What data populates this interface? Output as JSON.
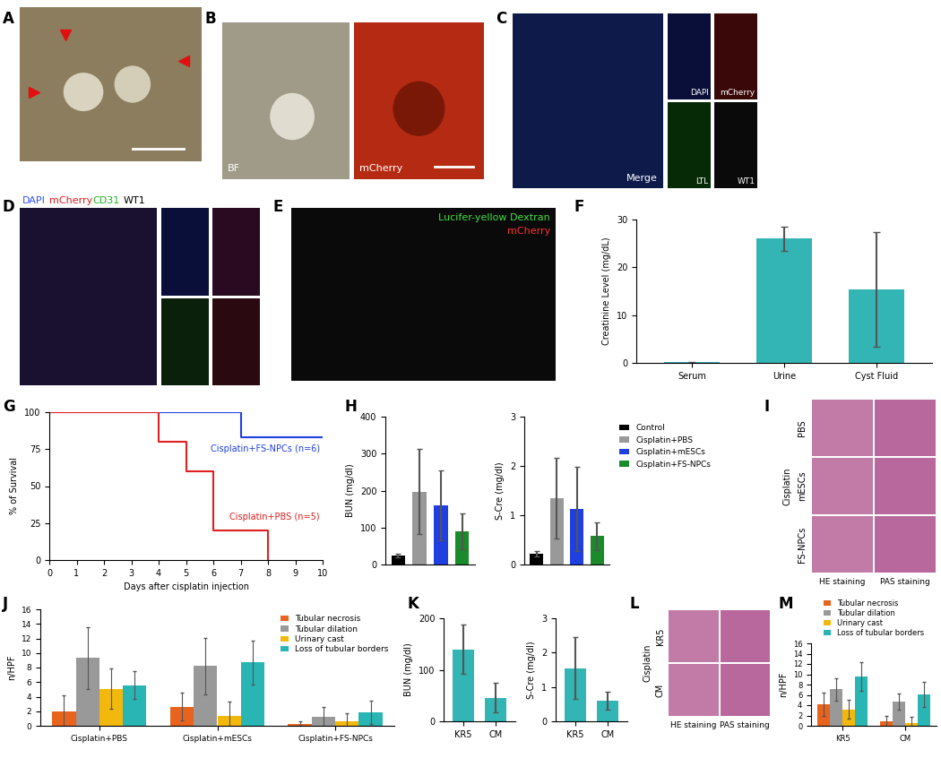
{
  "images": [
    {
      "panel": "A"
    },
    {
      "panel": "B",
      "labels": [
        "BF",
        "mCherry"
      ]
    },
    {
      "panel": "C",
      "labels": [
        "Merge",
        "DAPI",
        "mCherry",
        "LTL",
        "WT1"
      ]
    },
    {
      "panel": "D",
      "labels": [
        "DAPI",
        "mCherry",
        "CD31",
        "WT1"
      ]
    },
    {
      "panel": "E",
      "labels": [
        "Lucifer-yellow Dextran",
        "mCherry"
      ]
    },
    {
      "panel": "I",
      "group": "Cisplatin",
      "rows": [
        "PBS",
        "mESCs",
        "FS-NPCs"
      ],
      "columns": [
        "HE staining",
        "PAS staining"
      ]
    },
    {
      "panel": "L",
      "group": "Cisplatin",
      "rows": [
        "KR5",
        "CM"
      ],
      "columns": [
        "HE staining",
        "PAS staining"
      ]
    }
  ],
  "chart_data": [
    {
      "panel": "F",
      "type": "bar",
      "categories": [
        "Serum",
        "Urine",
        "Cyst Fluid"
      ],
      "values": [
        0.15,
        26,
        15.3
      ],
      "errors": [
        0.1,
        2.5,
        12
      ],
      "color": "#33b5b5",
      "ylabel": "Creatinine Level (mg/dL)",
      "ylim": [
        0,
        30
      ],
      "yticks": [
        0,
        10,
        20,
        30
      ]
    },
    {
      "panel": "G",
      "type": "step",
      "xlabel": "Days after cisplatin injection",
      "ylabel": "% of Survival",
      "xlim": [
        0,
        10
      ],
      "xticks": [
        0,
        1,
        2,
        3,
        4,
        5,
        6,
        7,
        8,
        9,
        10
      ],
      "ylim": [
        0,
        100
      ],
      "yticks": [
        0,
        25,
        50,
        75,
        100
      ],
      "series": [
        {
          "name": "Cisplatin+FS-NPCs (n=6)",
          "color": "#2040e0",
          "x": [
            0,
            7,
            10
          ],
          "values": [
            100,
            83.3,
            83.3
          ]
        },
        {
          "name": "Cisplatin+PBS (n=5)",
          "color": "#e02020",
          "x": [
            0,
            4,
            5,
            6,
            8
          ],
          "values": [
            100,
            80,
            60,
            20,
            0
          ]
        }
      ]
    },
    {
      "panel": "H",
      "type": "bar",
      "categories": [
        "Control",
        "Cisplatin+PBS",
        "Cisplatin+mESCs",
        "Cisplatin+FS-NPCs"
      ],
      "colors": [
        "#000000",
        "#999999",
        "#1f3fe0",
        "#1a8a2a"
      ],
      "legend": "upper left",
      "tick_labels": "y",
      "subplots": [
        {
          "ylabel": "BUN (mg/dl)",
          "values": [
            25,
            197,
            160,
            90
          ],
          "errors": [
            5,
            115,
            95,
            48
          ],
          "ylim": [
            0,
            400
          ],
          "yticks": [
            0,
            100,
            200,
            300,
            400
          ]
        },
        {
          "ylabel": "S-Cre (mg/dl)",
          "values": [
            0.22,
            1.35,
            1.13,
            0.58
          ],
          "errors": [
            0.05,
            0.82,
            0.85,
            0.28
          ],
          "ylim": [
            0,
            3
          ],
          "yticks": [
            0,
            1,
            2,
            3
          ]
        }
      ]
    },
    {
      "panel": "J",
      "type": "bar",
      "categories": [
        "Cisplatin+PBS",
        "Cisplatin+mESCs",
        "Cisplatin+FS-NPCs"
      ],
      "ylabel": "n/HPF",
      "ylim": [
        0,
        16
      ],
      "yticks": [
        0,
        2,
        4,
        6,
        8,
        10,
        12,
        14,
        16
      ],
      "legend": "upper right",
      "series": [
        {
          "name": "Tubular necrosis",
          "color": "#e8641e",
          "values": [
            2.0,
            2.6,
            0.3
          ],
          "errors": [
            2.2,
            1.9,
            0.3
          ]
        },
        {
          "name": "Tubular dilation",
          "color": "#999999",
          "values": [
            9.3,
            8.2,
            1.2
          ],
          "errors": [
            4.2,
            3.9,
            1.4
          ]
        },
        {
          "name": "Urinary cast",
          "color": "#f2b80c",
          "values": [
            5.1,
            1.4,
            0.6
          ],
          "errors": [
            2.8,
            1.9,
            1.1
          ]
        },
        {
          "name": "Loss of tubular borders",
          "color": "#2ab5b5",
          "values": [
            5.6,
            8.7,
            1.8
          ],
          "errors": [
            1.9,
            3.0,
            1.6
          ]
        }
      ]
    },
    {
      "panel": "K",
      "type": "bar",
      "categories": [
        "KR5",
        "CM"
      ],
      "color": "#33b5b5",
      "subplots": [
        {
          "ylabel": "BUN (mg/dl)",
          "values": [
            140,
            46
          ],
          "errors": [
            47,
            28
          ],
          "ylim": [
            0,
            200
          ],
          "yticks": [
            0,
            100,
            200
          ]
        },
        {
          "ylabel": "S-Cre (mg/dl)",
          "values": [
            1.55,
            0.6
          ],
          "errors": [
            0.9,
            0.27
          ],
          "ylim": [
            0,
            3
          ],
          "yticks": [
            0,
            1,
            2,
            3
          ]
        }
      ]
    },
    {
      "panel": "M",
      "type": "bar",
      "categories": [
        "KR5",
        "CM"
      ],
      "ylabel": "n/HPF",
      "ylim": [
        0,
        16
      ],
      "yticks": [
        0,
        2,
        4,
        6,
        8,
        10,
        12,
        14,
        16
      ],
      "legend": "upper center",
      "series": [
        {
          "name": "Tubular necrosis",
          "color": "#e8641e",
          "values": [
            4.2,
            0.8
          ],
          "errors": [
            2.3,
            1.2
          ]
        },
        {
          "name": "Tubular dilation",
          "color": "#999999",
          "values": [
            7.1,
            4.7
          ],
          "errors": [
            2.2,
            1.6
          ]
        },
        {
          "name": "Urinary cast",
          "color": "#f2b80c",
          "values": [
            3.2,
            0.6
          ],
          "errors": [
            1.8,
            1.2
          ]
        },
        {
          "name": "Loss of tubular borders",
          "color": "#2ab5b5",
          "values": [
            9.5,
            6.1
          ],
          "errors": [
            2.8,
            2.4
          ]
        }
      ]
    }
  ]
}
